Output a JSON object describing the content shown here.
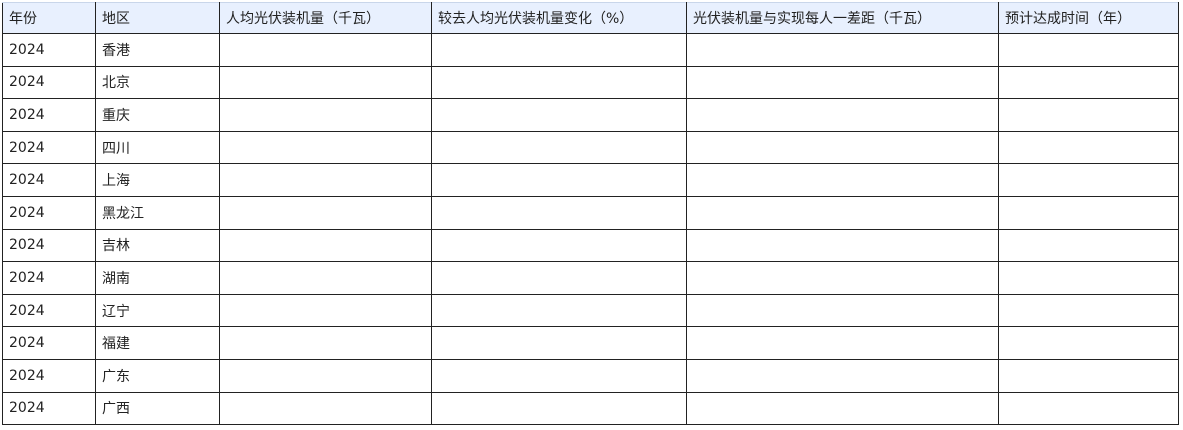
{
  "headers": [
    "年份",
    "地区",
    "人均光伏装机量（千瓦）",
    "较去人均光伏装机量变化（%）",
    "光伏装机量与实现每人一差距（千瓦）",
    "预计达成时间（年）"
  ],
  "rows": [
    [
      "2024",
      "香港",
      "",
      "",
      "",
      ""
    ],
    [
      "2024",
      "北京",
      "",
      "",
      "",
      ""
    ],
    [
      "2024",
      "重庆",
      "",
      "",
      "",
      ""
    ],
    [
      "2024",
      "四川",
      "",
      "",
      "",
      ""
    ],
    [
      "2024",
      "上海",
      "",
      "",
      "",
      ""
    ],
    [
      "2024",
      "黑龙江",
      "",
      "",
      "",
      ""
    ],
    [
      "2024",
      "吉林",
      "",
      "",
      "",
      ""
    ],
    [
      "2024",
      "湖南",
      "",
      "",
      "",
      ""
    ],
    [
      "2024",
      "辽宁",
      "",
      "",
      "",
      ""
    ],
    [
      "2024",
      "福建",
      "",
      "",
      "",
      ""
    ],
    [
      "2024",
      "广东",
      "",
      "",
      "",
      ""
    ],
    [
      "2024",
      "广西",
      "",
      "",
      "",
      ""
    ]
  ],
  "colors": {
    "header_bg": "#e8f0fe",
    "border": "#222222"
  }
}
